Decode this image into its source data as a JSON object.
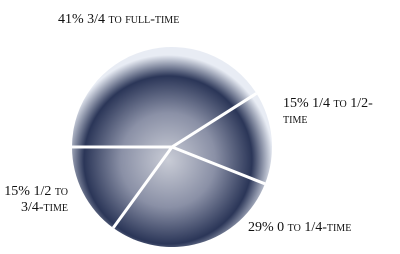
{
  "chart_data": {
    "type": "pie",
    "categories": [
      "3/4 to full-time",
      "1/4 to 1/2-time",
      "0 to 1/4-time",
      "1/2 to 3/4-time"
    ],
    "values": [
      41,
      15,
      29,
      15
    ],
    "value_labels": [
      "41%",
      "15%",
      "29%",
      "15%"
    ],
    "color": "#2b3658"
  }
}
